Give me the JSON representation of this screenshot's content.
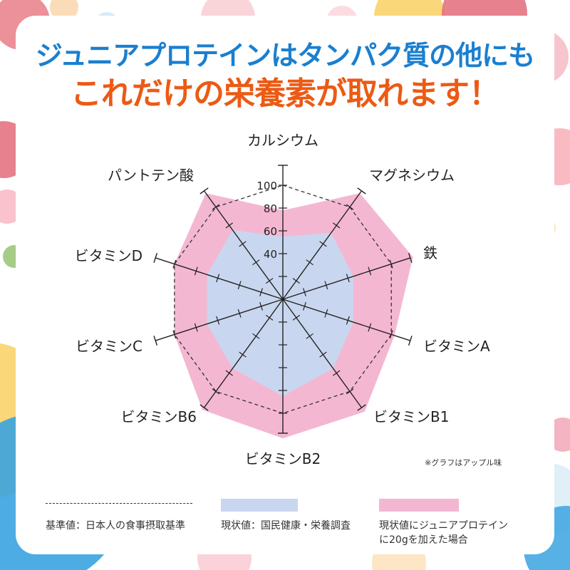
{
  "headline": {
    "line1": "ジュニアプロテインはタンパク質の他にも",
    "line2": "これだけの栄養素が取れます！"
  },
  "chart_data": {
    "type": "radar",
    "axes": [
      "カルシウム",
      "マグネシウム",
      "鉄",
      "ビタミンA",
      "ビタミンB1",
      "ビタミンB2",
      "ビタミンB6",
      "ビタミンC",
      "ビタミンD",
      "パントテン酸"
    ],
    "ticks": [
      "100",
      "80",
      "60",
      "40"
    ],
    "rlim": [
      0,
      120
    ],
    "series": [
      {
        "name": "基準値：日本人の食事摂取基準",
        "values": [
          100,
          100,
          100,
          100,
          100,
          100,
          100,
          100,
          100,
          100
        ],
        "style": "dashed",
        "color": "#333333"
      },
      {
        "name": "現状値：国民健康・栄養調査",
        "values": [
          55,
          72,
          65,
          65,
          75,
          85,
          75,
          70,
          70,
          75
        ],
        "color": "#c9d6ef"
      },
      {
        "name": "現状値にジュニアプロテインに20gを加えた場合",
        "values": [
          78,
          115,
          120,
          103,
          122,
          122,
          120,
          100,
          100,
          115
        ],
        "color": "#f4b7d2"
      }
    ]
  },
  "note": "※グラフはアップル味",
  "legend": {
    "standard": "基準値：日本人の食事摂取基準",
    "current": "現状値：国民健康・栄養調査",
    "with_protein_1": "現状値にジュニアプロテイン",
    "with_protein_2": "に20gを加えた場合"
  },
  "colors": {
    "headline_blue": "#1a7fd0",
    "headline_orange": "#ec5a14"
  }
}
